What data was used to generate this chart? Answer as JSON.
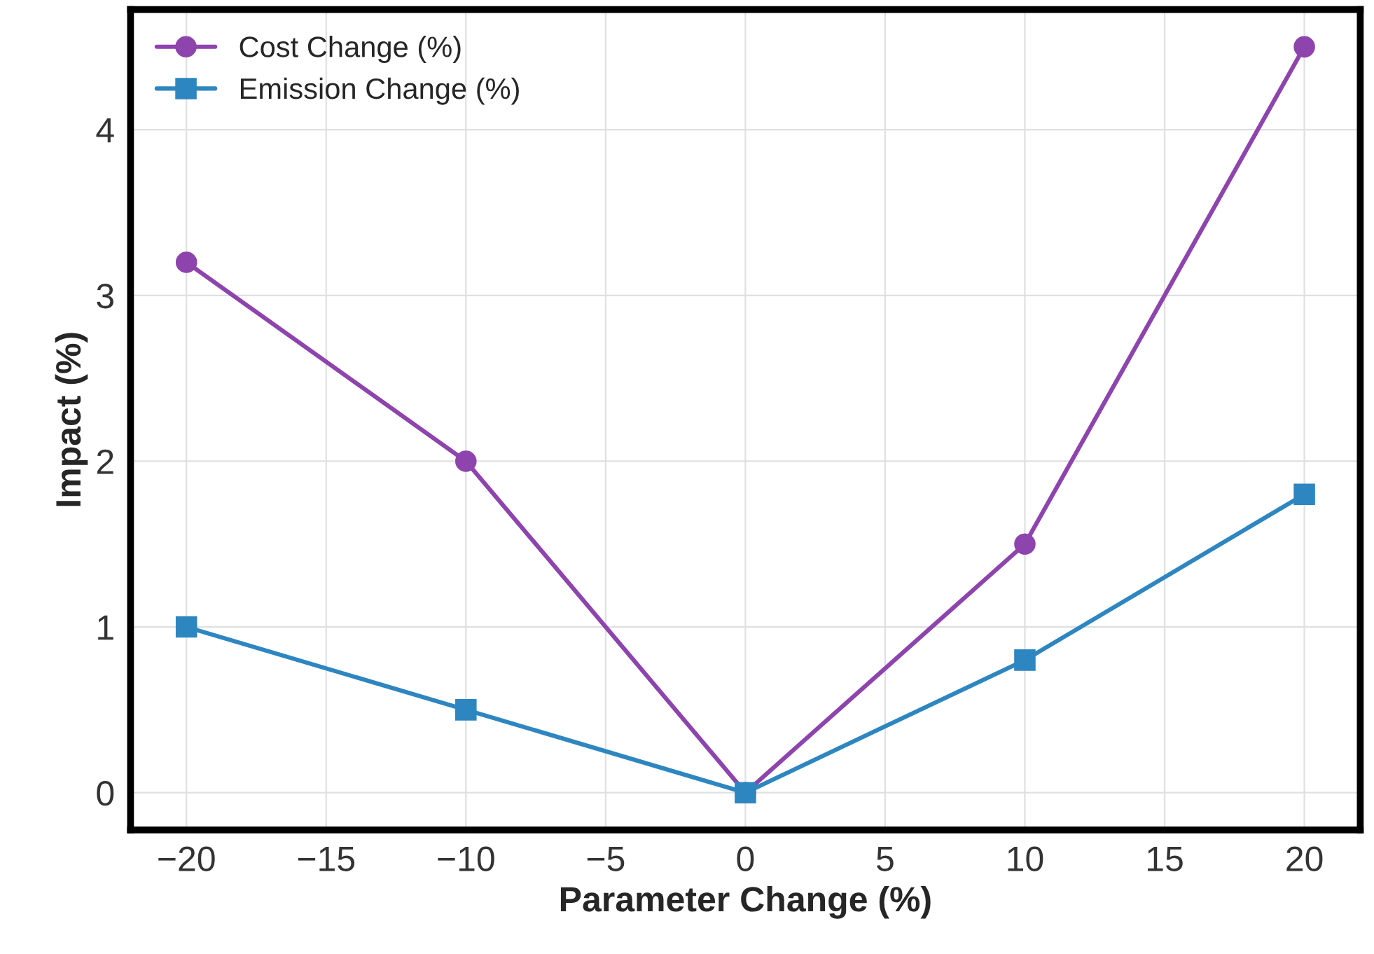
{
  "chart_data": {
    "type": "line",
    "xlabel": "Parameter Change (%)",
    "ylabel": "Impact (%)",
    "x": [
      -20,
      -10,
      0,
      10,
      20
    ],
    "series": [
      {
        "name": "Cost Change (%)",
        "color": "#8e44ad",
        "marker": "circle",
        "values": [
          3.2,
          2.0,
          0,
          1.5,
          4.5
        ]
      },
      {
        "name": "Emission Change (%)",
        "color": "#2e86c1",
        "marker": "square",
        "values": [
          1.0,
          0.5,
          0,
          0.8,
          1.8
        ]
      }
    ],
    "xlim": [
      -22,
      22
    ],
    "xticks": [
      {
        "value": -20,
        "label": "−20"
      },
      {
        "value": -15,
        "label": "−15"
      },
      {
        "value": -10,
        "label": "−10"
      },
      {
        "value": -5,
        "label": "−5"
      },
      0,
      5,
      10,
      15,
      20
    ],
    "ylim": [
      -0.225,
      4.725
    ],
    "yticks": [
      0,
      1,
      2,
      3,
      4
    ],
    "grid": true,
    "legend": "top left",
    "line_style": "solid"
  }
}
